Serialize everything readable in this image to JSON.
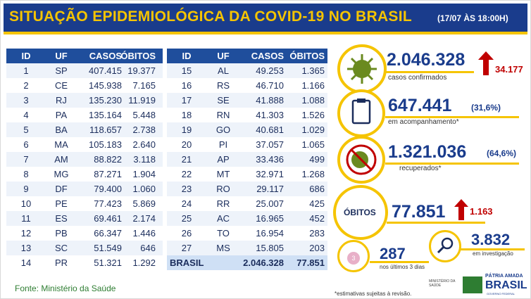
{
  "header": {
    "title": "SITUAÇÃO EPIDEMIOLÓGICA DA COVID-19 NO BRASIL",
    "date": "(17/07 ÀS 18:00H)"
  },
  "table": {
    "columns": [
      "ID",
      "UF",
      "CASOS",
      "ÓBITOS"
    ],
    "rows": [
      [
        "1",
        "SP",
        "407.415",
        "19.377"
      ],
      [
        "2",
        "CE",
        "145.938",
        "7.165"
      ],
      [
        "3",
        "RJ",
        "135.230",
        "11.919"
      ],
      [
        "4",
        "PA",
        "135.164",
        "5.448"
      ],
      [
        "5",
        "BA",
        "118.657",
        "2.738"
      ],
      [
        "6",
        "MA",
        "105.183",
        "2.640"
      ],
      [
        "7",
        "AM",
        "88.822",
        "3.118"
      ],
      [
        "8",
        "MG",
        "87.271",
        "1.904"
      ],
      [
        "9",
        "DF",
        "79.400",
        "1.060"
      ],
      [
        "10",
        "PE",
        "77.423",
        "5.869"
      ],
      [
        "11",
        "ES",
        "69.461",
        "2.174"
      ],
      [
        "12",
        "PB",
        "66.347",
        "1.446"
      ],
      [
        "13",
        "SC",
        "51.549",
        "646"
      ],
      [
        "14",
        "PR",
        "51.321",
        "1.292"
      ],
      [
        "15",
        "AL",
        "49.253",
        "1.365"
      ],
      [
        "16",
        "RS",
        "46.710",
        "1.166"
      ],
      [
        "17",
        "SE",
        "41.888",
        "1.088"
      ],
      [
        "18",
        "RN",
        "41.303",
        "1.526"
      ],
      [
        "19",
        "GO",
        "40.681",
        "1.029"
      ],
      [
        "20",
        "PI",
        "37.057",
        "1.065"
      ],
      [
        "21",
        "AP",
        "33.436",
        "499"
      ],
      [
        "22",
        "MT",
        "32.971",
        "1.268"
      ],
      [
        "23",
        "RO",
        "29.117",
        "686"
      ],
      [
        "24",
        "RR",
        "25.007",
        "425"
      ],
      [
        "25",
        "AC",
        "16.965",
        "452"
      ],
      [
        "26",
        "TO",
        "16.954",
        "283"
      ],
      [
        "27",
        "MS",
        "15.805",
        "203"
      ]
    ],
    "total": [
      "BRASIL",
      "2.046.328",
      "77.851"
    ]
  },
  "stats": {
    "confirmed": {
      "value": "2.046.328",
      "label": "casos confirmados",
      "delta": "34.177"
    },
    "monitoring": {
      "value": "647.441",
      "percent": "(31,6%)",
      "label": "em acompanhamento*"
    },
    "recovered": {
      "value": "1.321.036",
      "percent": "(64,6%)",
      "label": "recuperados*"
    },
    "deaths": {
      "label": "ÓBITOS",
      "value": "77.851",
      "delta": "1.163"
    },
    "investigation": {
      "value": "3.832",
      "label": "em investigação"
    },
    "recent": {
      "value": "287",
      "label": "nos últimos 3 dias",
      "badge": "3"
    }
  },
  "footer": {
    "source": "Fonte: Ministério da Saúde",
    "note": "*estimativas sujeitas à revisão.",
    "ministry": "MINISTÉRIO DA SAÚDE",
    "slogan": "PÁTRIA AMADA",
    "brand": "BRASIL",
    "gov": "GOVERNO FEDERAL"
  }
}
